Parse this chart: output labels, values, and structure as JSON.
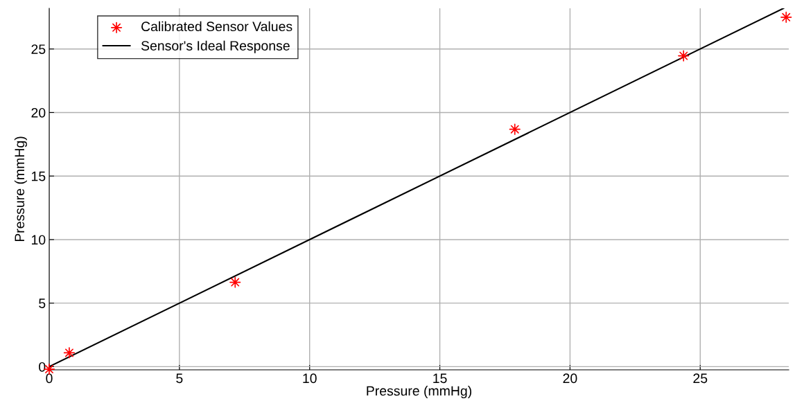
{
  "chart_data": {
    "type": "scatter",
    "xlabel": "Pressure (mmHg)",
    "ylabel": "Pressure (mmHg)",
    "xlim": [
      0,
      28.4
    ],
    "ylim": [
      -0.25,
      28.2
    ],
    "xticks": [
      0,
      5,
      10,
      15,
      20,
      25
    ],
    "yticks": [
      0,
      5,
      10,
      15,
      20,
      25
    ],
    "grid": true,
    "legend": "top left",
    "series": [
      {
        "name": "Calibrated Sensor Values",
        "marker": "cross",
        "color": "#ff0000",
        "x": [
          0,
          0.77,
          7.14,
          17.88,
          24.36,
          28.3
        ],
        "values": [
          -0.2,
          1.09,
          6.64,
          18.68,
          24.46,
          27.5
        ]
      },
      {
        "name": "Sensor's Ideal Response",
        "type": "line",
        "marker": "none",
        "line_style": "solid",
        "color": "#000000",
        "x": [
          0,
          28.2
        ],
        "values": [
          0,
          28.2
        ]
      }
    ]
  }
}
